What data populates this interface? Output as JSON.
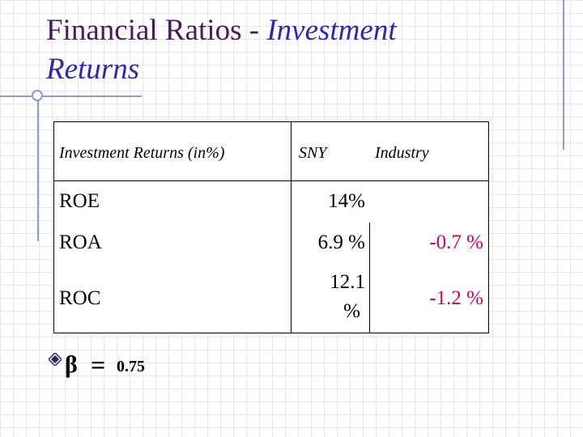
{
  "slide": {
    "title_plain": "Financial Ratios - ",
    "title_italic_1": "Investment",
    "title_italic_2": "Returns"
  },
  "table": {
    "headers": [
      "Investment Returns (in%)",
      "SNY",
      "Industry"
    ],
    "rows": [
      {
        "label": "ROE",
        "sny": "14%",
        "industry": ""
      },
      {
        "label": "ROA",
        "sny": "6.9 %",
        "industry": "-0.7 %"
      },
      {
        "label": "ROC",
        "sny_line1": "12.1",
        "sny_line2": "%",
        "industry": "-1.2 %"
      }
    ]
  },
  "beta": {
    "symbol": "β",
    "equals": "=",
    "value": "0.75"
  },
  "colors": {
    "title": "#4a1a5c",
    "title_italic": "#2a2ab0",
    "negative": "#cc0066",
    "decor": "#8aa0c8"
  }
}
